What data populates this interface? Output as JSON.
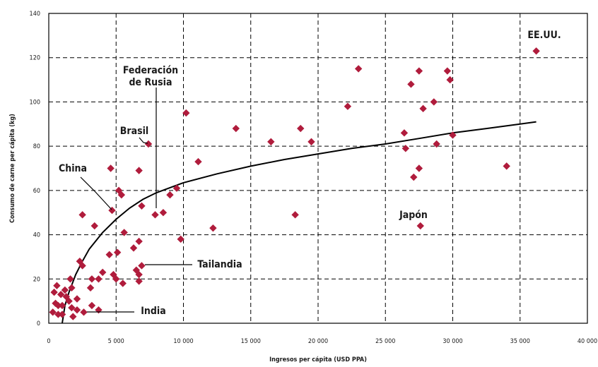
{
  "chart_data": {
    "type": "scatter",
    "title": "",
    "xlabel": "Ingresos per cápita (USD PPA)",
    "ylabel": "Consumo de carne per cápita (kg)",
    "xlim": [
      0,
      40000
    ],
    "ylim": [
      0,
      140
    ],
    "x_ticks": [
      0,
      5000,
      10000,
      15000,
      20000,
      25000,
      30000,
      35000,
      40000
    ],
    "x_tick_labels": [
      "0",
      "5 000",
      "10 000",
      "15 000",
      "20 000",
      "25 000",
      "30 000",
      "35 000",
      "40 000"
    ],
    "y_ticks": [
      0,
      20,
      40,
      60,
      80,
      100,
      120,
      140
    ],
    "y_tick_labels": [
      "0",
      "20",
      "40",
      "60",
      "80",
      "100",
      "120",
      "140"
    ],
    "grid": true,
    "marker_color": "#b01c3c",
    "points": [
      [
        36200,
        123
      ],
      [
        23000,
        115
      ],
      [
        27500,
        114
      ],
      [
        29600,
        114
      ],
      [
        26900,
        108
      ],
      [
        29800,
        110
      ],
      [
        28600,
        100
      ],
      [
        22200,
        98
      ],
      [
        27800,
        97
      ],
      [
        10200,
        95
      ],
      [
        13900,
        88
      ],
      [
        18700,
        88
      ],
      [
        16500,
        82
      ],
      [
        19500,
        82
      ],
      [
        7400,
        81
      ],
      [
        26400,
        86
      ],
      [
        30000,
        85
      ],
      [
        28800,
        81
      ],
      [
        26500,
        79
      ],
      [
        11100,
        73
      ],
      [
        34000,
        71
      ],
      [
        27500,
        70
      ],
      [
        4600,
        70
      ],
      [
        6700,
        69
      ],
      [
        27100,
        66
      ],
      [
        9500,
        61
      ],
      [
        9000,
        58
      ],
      [
        5200,
        60
      ],
      [
        5400,
        58
      ],
      [
        6900,
        53
      ],
      [
        4700,
        51
      ],
      [
        8500,
        50
      ],
      [
        7900,
        49
      ],
      [
        18300,
        49
      ],
      [
        2500,
        49
      ],
      [
        12200,
        43
      ],
      [
        3400,
        44
      ],
      [
        27600,
        44
      ],
      [
        5600,
        41
      ],
      [
        9800,
        38
      ],
      [
        6700,
        37
      ],
      [
        6300,
        34
      ],
      [
        5100,
        32
      ],
      [
        4500,
        31
      ],
      [
        2300,
        28
      ],
      [
        2500,
        26
      ],
      [
        6900,
        26
      ],
      [
        6500,
        24
      ],
      [
        6700,
        22
      ],
      [
        4000,
        23
      ],
      [
        4800,
        22
      ],
      [
        5000,
        20
      ],
      [
        3200,
        20
      ],
      [
        3700,
        20
      ],
      [
        1600,
        20
      ],
      [
        6700,
        19
      ],
      [
        5500,
        18
      ],
      [
        600,
        17
      ],
      [
        1200,
        15
      ],
      [
        3100,
        16
      ],
      [
        1700,
        16
      ],
      [
        400,
        14
      ],
      [
        900,
        13
      ],
      [
        1300,
        12
      ],
      [
        2100,
        11
      ],
      [
        1500,
        10
      ],
      [
        500,
        9
      ],
      [
        700,
        8
      ],
      [
        1000,
        8
      ],
      [
        1700,
        7
      ],
      [
        3200,
        8
      ],
      [
        3700,
        6
      ],
      [
        2100,
        6
      ],
      [
        300,
        5
      ],
      [
        700,
        4
      ],
      [
        1000,
        4
      ],
      [
        1800,
        3
      ],
      [
        2600,
        5
      ]
    ],
    "trendline": [
      [
        1000,
        0
      ],
      [
        1200,
        8
      ],
      [
        1500,
        14
      ],
      [
        2000,
        22
      ],
      [
        2500,
        28
      ],
      [
        3000,
        33.5
      ],
      [
        4000,
        41
      ],
      [
        5000,
        47
      ],
      [
        6000,
        52
      ],
      [
        7000,
        56
      ],
      [
        8000,
        59
      ],
      [
        10000,
        63.5
      ],
      [
        12500,
        67.5
      ],
      [
        15000,
        71
      ],
      [
        17500,
        74
      ],
      [
        20000,
        76.5
      ],
      [
        22500,
        79
      ],
      [
        25000,
        81
      ],
      [
        27500,
        83.5
      ],
      [
        30000,
        86
      ],
      [
        32500,
        88
      ],
      [
        35000,
        90
      ],
      [
        36200,
        91
      ]
    ],
    "annotations": [
      {
        "key": "eeuu",
        "text": "EE.UU.",
        "x": 36200,
        "y": 123,
        "leader": false
      },
      {
        "key": "federacion",
        "text": "Federación",
        "x": 7900,
        "y": 49,
        "leader": true
      },
      {
        "key": "rusia",
        "text": "de Rusia",
        "x": 7900,
        "y": 49,
        "leader": false
      },
      {
        "key": "brasil",
        "text": "Brasil",
        "x": 7400,
        "y": 81,
        "leader": true
      },
      {
        "key": "china",
        "text": "China",
        "x": 4700,
        "y": 51,
        "leader": true
      },
      {
        "key": "japon",
        "text": "Japón",
        "x": 27600,
        "y": 44,
        "leader": false
      },
      {
        "key": "tailandia",
        "text": "Tailandia",
        "x": 6900,
        "y": 26,
        "leader": true
      },
      {
        "key": "india",
        "text": "India",
        "x": 2600,
        "y": 5,
        "leader": true
      }
    ]
  }
}
